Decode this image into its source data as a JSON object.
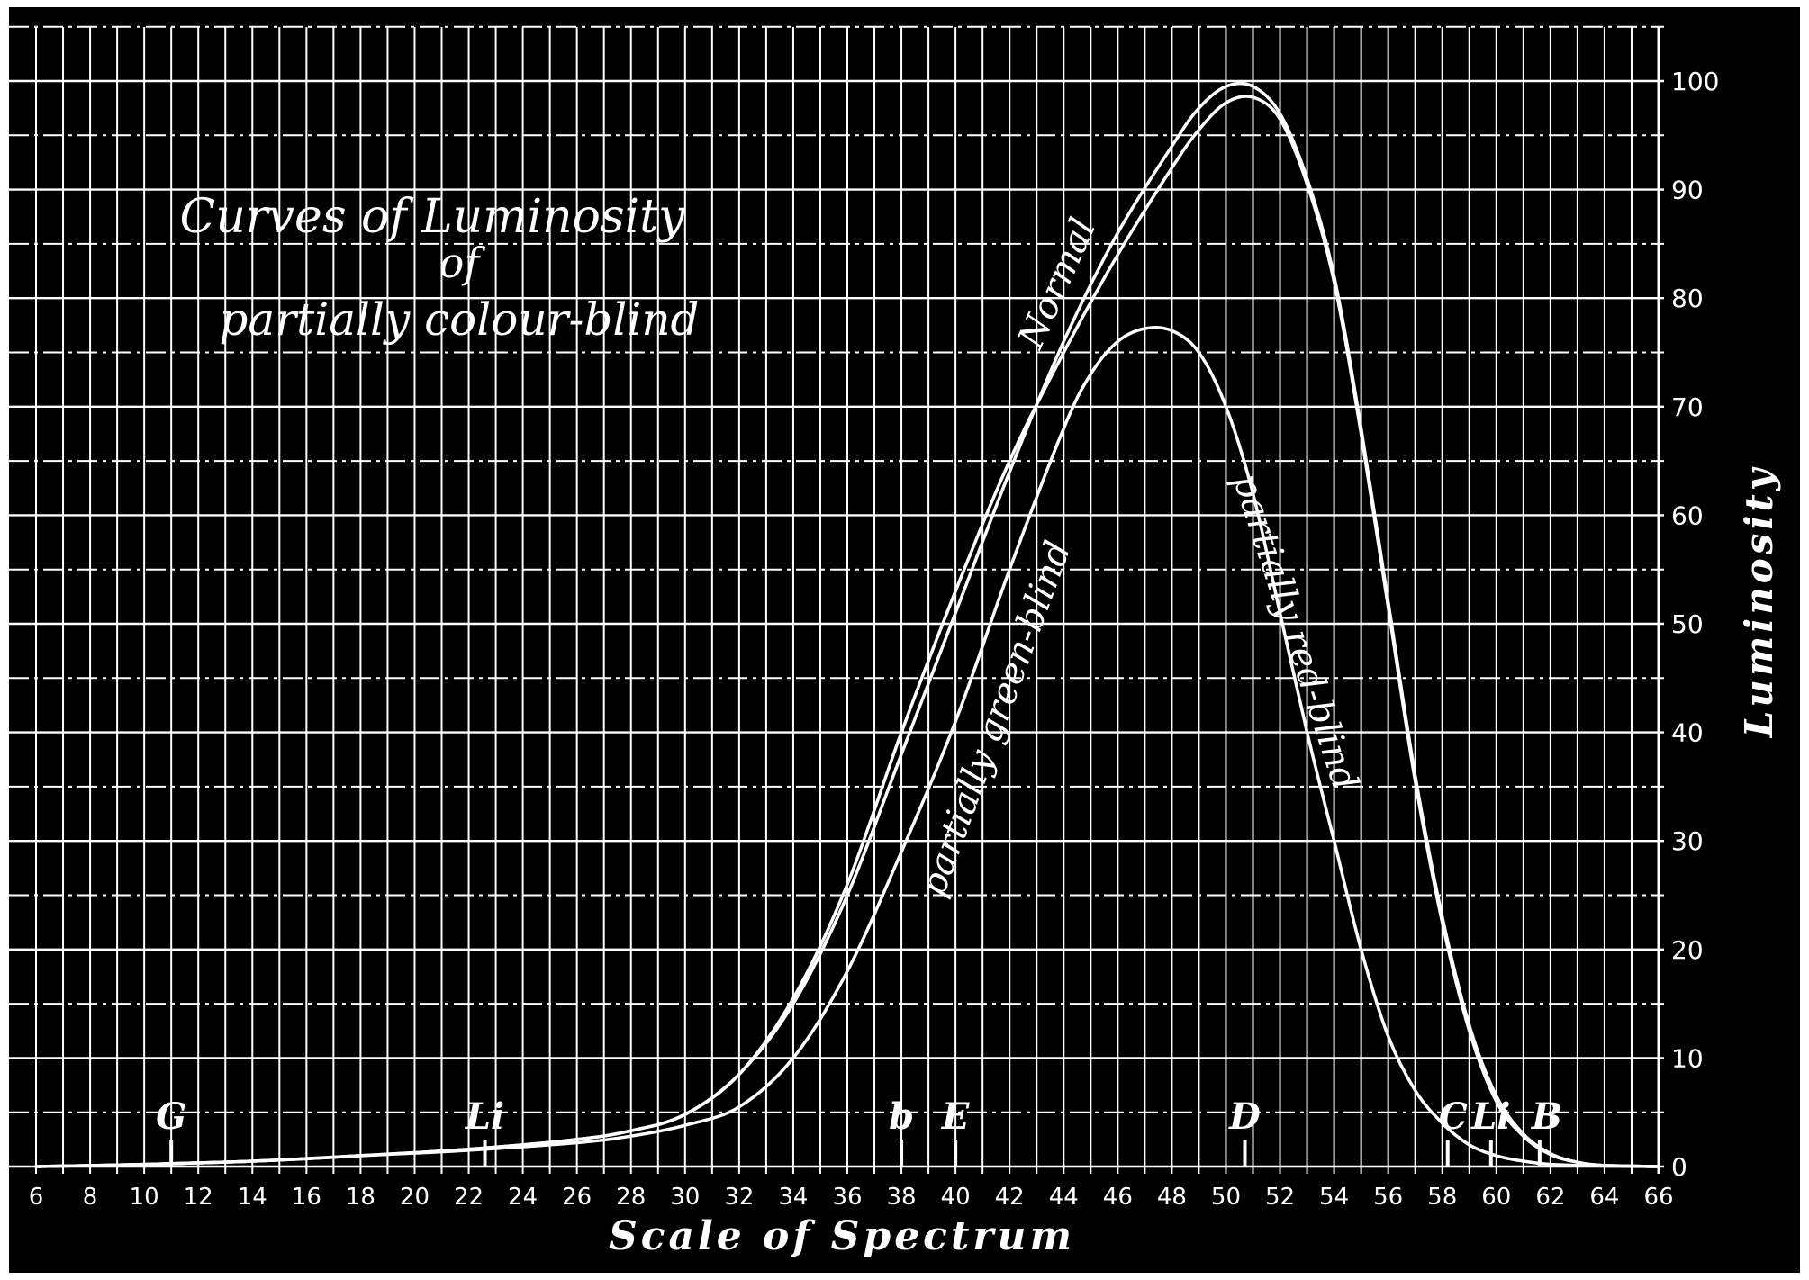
{
  "chart_data": {
    "type": "line",
    "title": [
      "Curves of Luminosity",
      "of",
      "partially colour-blind"
    ],
    "xlabel": "Scale of Spectrum",
    "ylabel": "Luminosity",
    "xlim": [
      6,
      66
    ],
    "ylim": [
      0,
      100
    ],
    "grid": true,
    "x_ticks": [
      6,
      8,
      10,
      12,
      14,
      16,
      18,
      20,
      22,
      24,
      26,
      28,
      30,
      32,
      34,
      36,
      38,
      40,
      42,
      44,
      46,
      48,
      50,
      52,
      54,
      56,
      58,
      60,
      62,
      64,
      66
    ],
    "y_ticks": [
      0,
      10,
      20,
      30,
      40,
      50,
      60,
      70,
      80,
      90,
      100
    ],
    "spectral_lines": [
      {
        "label": "G",
        "x": 11
      },
      {
        "label": "Li",
        "x": 22.6
      },
      {
        "label": "b",
        "x": 38
      },
      {
        "label": "E",
        "x": 40
      },
      {
        "label": "D",
        "x": 50.7
      },
      {
        "label": "C",
        "x": 58.2
      },
      {
        "label": "Li",
        "x": 59.8
      },
      {
        "label": "B",
        "x": 61.6
      }
    ],
    "series": [
      {
        "name": "Normal",
        "x": [
          6,
          10,
          14,
          18,
          22,
          26,
          28,
          30,
          32,
          34,
          36,
          38,
          40,
          42,
          44,
          46,
          48,
          49,
          50,
          51,
          52,
          53,
          54,
          55,
          56,
          57,
          58,
          59,
          60,
          61,
          62,
          63,
          64,
          66
        ],
        "y": [
          0,
          0.2,
          0.5,
          1,
          1.6,
          2.5,
          3.3,
          4.8,
          8.5,
          15,
          25,
          38,
          51,
          64,
          76,
          86,
          94,
          97.5,
          99.5,
          99.5,
          97,
          91,
          82,
          68,
          52,
          36,
          23,
          13,
          6.5,
          3,
          1.2,
          0.4,
          0.1,
          0
        ]
      },
      {
        "name": "partially green-blind",
        "x": [
          6,
          10,
          14,
          18,
          22,
          26,
          28,
          30,
          32,
          34,
          36,
          38,
          40,
          42,
          44,
          46,
          48,
          49,
          50,
          51,
          52,
          53,
          54,
          55,
          56,
          57,
          58,
          59,
          60,
          61,
          62,
          63,
          64,
          66
        ],
        "y": [
          0,
          0.2,
          0.5,
          1,
          1.6,
          2.5,
          3.3,
          4.8,
          8.5,
          15.5,
          26,
          40,
          53,
          65,
          75,
          84,
          92,
          95.5,
          98,
          98.5,
          96.5,
          90.5,
          81.5,
          67.5,
          51.5,
          35.5,
          22.5,
          12.5,
          6,
          2.8,
          1.1,
          0.4,
          0.1,
          0
        ]
      },
      {
        "name": "partially red-blind",
        "x": [
          6,
          10,
          14,
          18,
          22,
          26,
          28,
          30,
          32,
          34,
          36,
          38,
          40,
          42,
          44,
          45,
          46,
          47,
          48,
          49,
          50,
          51,
          52,
          53,
          54,
          55,
          56,
          57,
          58,
          59,
          60,
          61,
          62,
          64,
          66
        ],
        "y": [
          0,
          0.2,
          0.5,
          1,
          1.5,
          2.2,
          2.8,
          3.8,
          5.5,
          10,
          18,
          29,
          41,
          55,
          68,
          73,
          76,
          77.2,
          77,
          75,
          70,
          62,
          51,
          40,
          30,
          20,
          12,
          7,
          4,
          2,
          1,
          0.5,
          0.2,
          0.05,
          0
        ]
      }
    ]
  }
}
